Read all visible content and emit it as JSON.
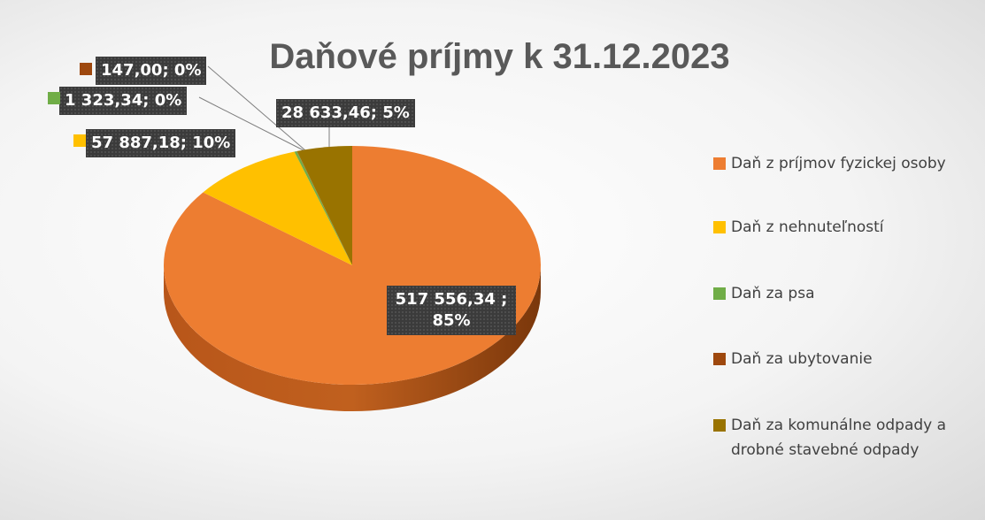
{
  "chart_data": {
    "type": "pie",
    "title": "Daňové príjmy k 31.12.2023",
    "categories": [
      "Daň z príjmov fyzickej osoby",
      "Daň z nehnuteľností",
      "Daň za psa",
      "Daň za ubytovanie",
      "Daň za komunálne odpady a drobné stavebné odpady"
    ],
    "values": [
      517556.34,
      57887.18,
      1323.34,
      147.0,
      28633.46
    ],
    "value_labels": [
      "517 556,34 ; 85%",
      "57 887,18; 10%",
      "1 323,34; 0%",
      "147,00; 0%",
      "28 633,46; 5%"
    ],
    "colors": [
      "#ed7d31",
      "#ffc000",
      "#70ad47",
      "#9e480e",
      "#997300"
    ],
    "legend": "right"
  }
}
